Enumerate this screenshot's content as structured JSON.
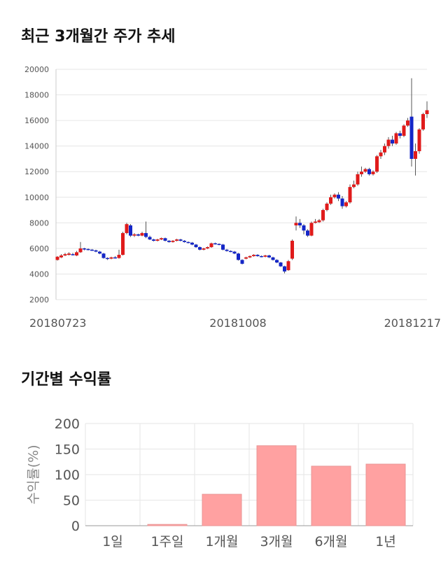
{
  "sections": {
    "price_title": "최근 3개월간 주가 추세",
    "returns_title": "기간별 수익률"
  },
  "chart_data": [
    {
      "type": "candlestick",
      "title": "최근 3개월간 주가 추세",
      "ylim": [
        2000,
        20000
      ],
      "yticks": [
        2000,
        4000,
        6000,
        8000,
        10000,
        12000,
        14000,
        16000,
        18000,
        20000
      ],
      "xtick_labels": [
        "20180723",
        "20181008",
        "20181217"
      ],
      "grid": true,
      "colors": {
        "up": "#e01b1b",
        "down": "#1426c8",
        "wick": "#555555"
      },
      "candles": [
        [
          5100,
          5350,
          5050,
          5400
        ],
        [
          5300,
          5450,
          5250,
          5550
        ],
        [
          5450,
          5550,
          5400,
          5650
        ],
        [
          5500,
          5600,
          5450,
          5700
        ],
        [
          5550,
          5500,
          5450,
          5650
        ],
        [
          5450,
          5700,
          5400,
          5800
        ],
        [
          5700,
          6000,
          5650,
          6500
        ],
        [
          6000,
          5950,
          5850,
          6050
        ],
        [
          5950,
          5900,
          5850,
          6000
        ],
        [
          5900,
          5850,
          5800,
          5950
        ],
        [
          5850,
          5750,
          5700,
          5900
        ],
        [
          5750,
          5600,
          5550,
          5800
        ],
        [
          5600,
          5250,
          5200,
          5650
        ],
        [
          5250,
          5200,
          5100,
          5300
        ],
        [
          5200,
          5300,
          5150,
          5350
        ],
        [
          5300,
          5250,
          5200,
          5400
        ],
        [
          5250,
          5500,
          5200,
          5900
        ],
        [
          5500,
          7200,
          5450,
          7300
        ],
        [
          7200,
          7900,
          7100,
          8000
        ],
        [
          7800,
          7000,
          6900,
          7900
        ],
        [
          7000,
          7100,
          6900,
          7200
        ],
        [
          7100,
          7000,
          6950,
          7150
        ],
        [
          7000,
          7200,
          6950,
          7300
        ],
        [
          7200,
          6900,
          6800,
          8100
        ],
        [
          6900,
          6700,
          6650,
          7000
        ],
        [
          6700,
          6600,
          6550,
          6750
        ],
        [
          6600,
          6700,
          6550,
          6750
        ],
        [
          6700,
          6800,
          6650,
          6850
        ],
        [
          6800,
          6600,
          6550,
          6850
        ],
        [
          6600,
          6500,
          6450,
          6650
        ],
        [
          6500,
          6600,
          6450,
          6650
        ],
        [
          6600,
          6700,
          6550,
          6750
        ],
        [
          6700,
          6600,
          6550,
          6750
        ],
        [
          6600,
          6500,
          6450,
          6650
        ],
        [
          6500,
          6450,
          6400,
          6550
        ],
        [
          6450,
          6300,
          6250,
          6500
        ],
        [
          6300,
          6100,
          6050,
          6350
        ],
        [
          6100,
          5900,
          5850,
          6150
        ],
        [
          5900,
          6000,
          5850,
          6050
        ],
        [
          6000,
          6100,
          5950,
          6150
        ],
        [
          6100,
          6400,
          6050,
          6450
        ],
        [
          6400,
          6350,
          6300,
          6450
        ],
        [
          6350,
          6300,
          6250,
          6400
        ],
        [
          6300,
          5900,
          5850,
          6350
        ],
        [
          5900,
          5800,
          5750,
          5950
        ],
        [
          5800,
          5750,
          5700,
          5850
        ],
        [
          5750,
          5600,
          5550,
          5800
        ],
        [
          5600,
          5100,
          5050,
          5650
        ],
        [
          5100,
          4800,
          4750,
          5150
        ],
        [
          5200,
          5300,
          5150,
          5350
        ],
        [
          5300,
          5400,
          5250,
          5450
        ],
        [
          5400,
          5500,
          5350,
          5550
        ],
        [
          5500,
          5400,
          5350,
          5550
        ],
        [
          5400,
          5350,
          5300,
          5450
        ],
        [
          5350,
          5450,
          5300,
          5500
        ],
        [
          5450,
          5300,
          5250,
          5500
        ],
        [
          5300,
          5100,
          5050,
          5350
        ],
        [
          5100,
          4900,
          4850,
          5150
        ],
        [
          4900,
          4600,
          4550,
          4950
        ],
        [
          4600,
          4200,
          4050,
          4650
        ],
        [
          4300,
          5000,
          4250,
          5100
        ],
        [
          5200,
          6600,
          5100,
          6700
        ],
        [
          7800,
          8000,
          7400,
          8500
        ],
        [
          8000,
          7800,
          7600,
          8300
        ],
        [
          7800,
          7400,
          7100,
          7900
        ],
        [
          7400,
          7000,
          6900,
          7500
        ],
        [
          7000,
          8000,
          6950,
          8100
        ],
        [
          8000,
          8100,
          7950,
          8300
        ],
        [
          8050,
          8200,
          8000,
          8300
        ],
        [
          8200,
          9000,
          8100,
          9100
        ],
        [
          9000,
          9500,
          8900,
          9600
        ],
        [
          9500,
          10000,
          9400,
          10200
        ],
        [
          10000,
          10200,
          9900,
          10300
        ],
        [
          10200,
          9900,
          9700,
          10400
        ],
        [
          9900,
          9300,
          9100,
          10100
        ],
        [
          9300,
          9600,
          9200,
          9700
        ],
        [
          9600,
          10800,
          9500,
          11000
        ],
        [
          10800,
          11000,
          10700,
          11300
        ],
        [
          11000,
          11800,
          10900,
          12000
        ],
        [
          11800,
          12000,
          11600,
          12400
        ],
        [
          12000,
          12200,
          11900,
          12300
        ],
        [
          12200,
          11800,
          11700,
          12300
        ],
        [
          11800,
          12000,
          11700,
          12100
        ],
        [
          12000,
          13200,
          11900,
          13300
        ],
        [
          13200,
          13500,
          13000,
          13700
        ],
        [
          13500,
          14000,
          13300,
          14200
        ],
        [
          14000,
          14500,
          13800,
          14700
        ],
        [
          14500,
          14200,
          14000,
          14800
        ],
        [
          14200,
          15000,
          14100,
          15100
        ],
        [
          15000,
          14800,
          14600,
          15200
        ],
        [
          14800,
          15600,
          14700,
          15700
        ],
        [
          15600,
          16000,
          15500,
          16200
        ],
        [
          16300,
          13000,
          12400,
          19300
        ],
        [
          13000,
          13600,
          11700,
          14200
        ],
        [
          13600,
          15300,
          13400,
          15400
        ],
        [
          15300,
          16500,
          15200,
          16600
        ],
        [
          16500,
          16800,
          16200,
          17500
        ]
      ]
    },
    {
      "type": "bar",
      "title": "기간별 수익률",
      "categories": [
        "1일",
        "1주일",
        "1개월",
        "3개월",
        "6개월",
        "1년"
      ],
      "values": [
        0,
        2.5,
        61.5,
        156.5,
        116.5,
        120.5
      ],
      "ylabel": "수익률(%)",
      "ylim": [
        0,
        200
      ],
      "yticks": [
        0,
        50,
        100,
        150,
        200
      ],
      "grid": true,
      "colors": {
        "bar": "#ffa1a1",
        "bar_edge": "#e89595"
      }
    }
  ]
}
